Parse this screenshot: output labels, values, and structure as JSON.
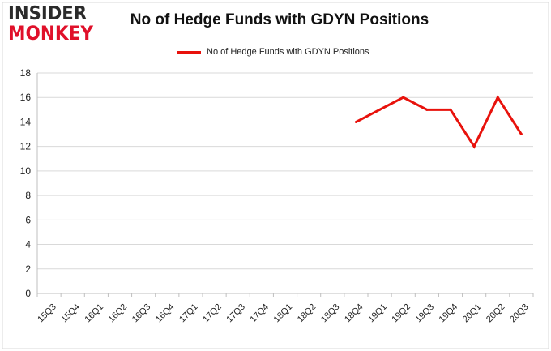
{
  "logo": {
    "line1": "INSIDER",
    "line2": "MONKEY"
  },
  "chart_data": {
    "type": "line",
    "title": "No of Hedge Funds with GDYN Positions",
    "xlabel": "",
    "ylabel": "",
    "categories": [
      "15Q3",
      "15Q4",
      "16Q1",
      "16Q2",
      "16Q3",
      "16Q4",
      "17Q1",
      "17Q2",
      "17Q3",
      "17Q4",
      "18Q1",
      "18Q2",
      "18Q3",
      "18Q4",
      "19Q1",
      "19Q2",
      "19Q3",
      "19Q4",
      "20Q1",
      "20Q2",
      "20Q3"
    ],
    "series": [
      {
        "name": "No of Hedge Funds with GDYN Positions",
        "color": "#e8120c",
        "values": [
          null,
          null,
          null,
          null,
          null,
          null,
          null,
          null,
          null,
          null,
          null,
          null,
          null,
          14,
          15,
          16,
          15,
          15,
          12,
          16,
          13
        ]
      }
    ],
    "ylim": [
      0,
      18
    ],
    "yticks": [
      0,
      2,
      4,
      6,
      8,
      10,
      12,
      14,
      16,
      18
    ],
    "grid": true,
    "legend_position": "top-center"
  }
}
